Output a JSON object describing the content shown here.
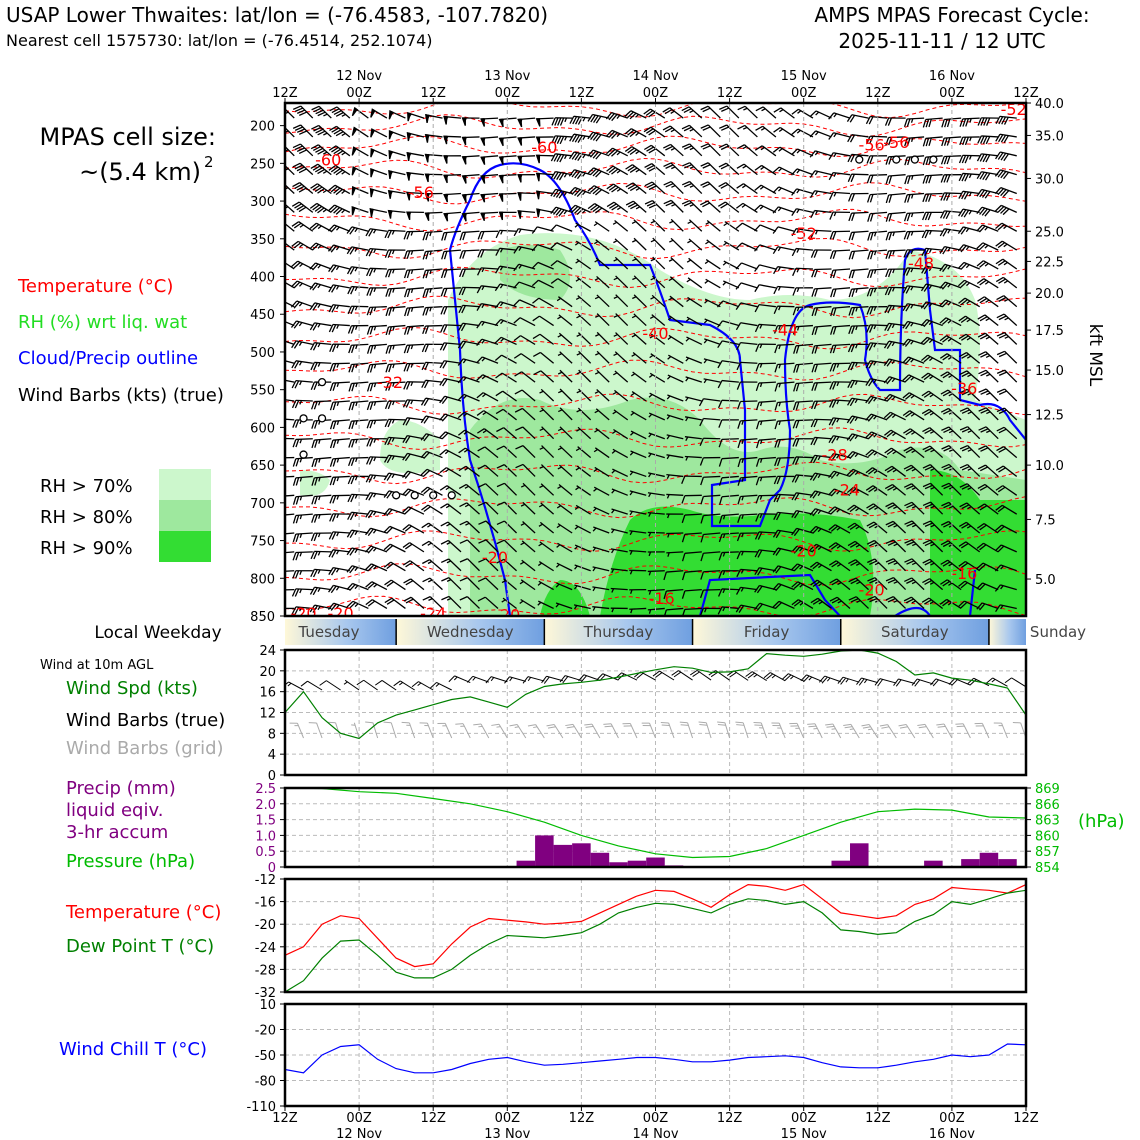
{
  "header": {
    "title_left": "USAP Lower Thwaites: lat/lon = (-76.4583, -107.7820)",
    "subtitle_left": "Nearest cell 1575730: lat/lon = (-76.4514, 252.1074)",
    "title_right_1": "AMPS MPAS Forecast Cycle:",
    "title_right_2": "2025-11-11 / 12 UTC"
  },
  "colors": {
    "rh70": "#ccf7cc",
    "rh80": "#9ee89e",
    "rh90": "#33dd33",
    "temp": "#ff0000",
    "rh_text": "#22dd22",
    "cloud": "#0000ff",
    "precip": "#800080",
    "pressure": "#00bb00",
    "dewpoint": "#008000",
    "windspd": "#008000",
    "windchill": "#0000ff",
    "grid_barb": "#aaaaaa"
  },
  "top_panel": {
    "cell_size_label": "MPAS cell size:",
    "cell_size_value": "~(5.4 km)",
    "cell_size_exp": "2",
    "legend": {
      "temperature": "Temperature (°C)",
      "rh": "RH (%) wrt liq. wat",
      "cloud": "Cloud/Precip outline",
      "wind": "Wind Barbs (kts) (true)",
      "rh70": "RH > 70%",
      "rh80": "RH > 80%",
      "rh90": "RH > 90%"
    },
    "right_axis_label": "kft MSL"
  },
  "weekday": {
    "label": "Local Weekday",
    "days": [
      "Tuesday",
      "Wednesday",
      "Thursday",
      "Friday",
      "Saturday",
      "Sunday"
    ]
  },
  "wind_panel": {
    "title": "Wind at 10m AGL",
    "label_speed": "Wind Spd (kts)",
    "label_true": "Wind Barbs (true)",
    "label_grid": "Wind Barbs (grid)"
  },
  "precip_panel": {
    "label_1": "Precip (mm)",
    "label_2": "liquid eqiv.",
    "label_3": "3-hr accum",
    "label_pressure": "Pressure (hPa)",
    "right_unit": "(hPa)"
  },
  "temp_panel": {
    "label_temp": "Temperature (°C)",
    "label_dew": "Dew Point T (°C)"
  },
  "chill_panel": {
    "label": "Wind Chill T (°C)"
  },
  "chart_data": [
    {
      "type": "heatmap",
      "name": "vertical cross-section",
      "x_ticks_top": [
        "12Z",
        "00Z",
        "12Z",
        "00Z",
        "12Z",
        "00Z",
        "12Z",
        "00Z",
        "12Z",
        "00Z",
        "12Z"
      ],
      "x_dates_top": [
        "12 Nov",
        "13 Nov",
        "14 Nov",
        "15 Nov",
        "16 Nov"
      ],
      "y_left_ticks": [
        200,
        250,
        300,
        350,
        400,
        450,
        500,
        550,
        600,
        650,
        700,
        750,
        800,
        850
      ],
      "y_left_range": [
        170,
        850
      ],
      "y_right_ticks": [
        "40.0",
        "35.0",
        "30.0",
        "25.0",
        "22.5",
        "20.0",
        "17.5",
        "15.0",
        "12.5",
        "10.0",
        "7.5",
        "5.0"
      ],
      "y_right_pressure": [
        170,
        213,
        270,
        340,
        380,
        422,
        471,
        524,
        583,
        650,
        722,
        801
      ],
      "temp_contour_labels": [
        {
          "text": "-52",
          "t": 118,
          "p": 178
        },
        {
          "text": "-56",
          "t": 95,
          "p": 225
        },
        {
          "text": "-56",
          "t": 99,
          "p": 222
        },
        {
          "text": "-60",
          "t": 7,
          "p": 245
        },
        {
          "text": "-60",
          "t": 42,
          "p": 228
        },
        {
          "text": "-56",
          "t": 22,
          "p": 288
        },
        {
          "text": "-52",
          "t": 84,
          "p": 342
        },
        {
          "text": "-48",
          "t": 103,
          "p": 382
        },
        {
          "text": "-44",
          "t": 81,
          "p": 470
        },
        {
          "text": "-40",
          "t": 60,
          "p": 475
        },
        {
          "text": "-36",
          "t": 110,
          "p": 548
        },
        {
          "text": "-32",
          "t": 17,
          "p": 540
        },
        {
          "text": "-28",
          "t": 89,
          "p": 636
        },
        {
          "text": "-24",
          "t": 91,
          "p": 682
        },
        {
          "text": "-20",
          "t": 84,
          "p": 763
        },
        {
          "text": "-20",
          "t": 34,
          "p": 772
        },
        {
          "text": "-16",
          "t": 110,
          "p": 793
        },
        {
          "text": "-16",
          "t": 61,
          "p": 826
        },
        {
          "text": "-20",
          "t": 95,
          "p": 815
        },
        {
          "text": "-24",
          "t": 24,
          "p": 846
        },
        {
          "text": "-20",
          "t": 3,
          "p": 846
        },
        {
          "text": "-20",
          "t": 9,
          "p": 846
        },
        {
          "text": "-20",
          "t": 36,
          "p": 848
        }
      ],
      "calm_markers": [
        {
          "t": 6,
          "p": 540
        },
        {
          "t": 3,
          "p": 588
        },
        {
          "t": 6,
          "p": 588
        },
        {
          "t": 3,
          "p": 636
        },
        {
          "t": 18,
          "p": 690
        },
        {
          "t": 21,
          "p": 690
        },
        {
          "t": 24,
          "p": 690
        },
        {
          "t": 27,
          "p": 690
        },
        {
          "t": 93,
          "p": 245
        },
        {
          "t": 99,
          "p": 245
        },
        {
          "t": 102,
          "p": 245
        },
        {
          "t": 105,
          "p": 245
        }
      ]
    },
    {
      "type": "line",
      "name": "10m wind",
      "x_hours": [
        0,
        3,
        6,
        9,
        12,
        15,
        18,
        21,
        24,
        27,
        30,
        33,
        36,
        39,
        42,
        45,
        48,
        51,
        54,
        57,
        60,
        63,
        66,
        69,
        72,
        75,
        78,
        81,
        84,
        87,
        90,
        93,
        96,
        99,
        102,
        105,
        108,
        111,
        114,
        117,
        120
      ],
      "ylim": [
        0,
        24
      ],
      "y_ticks": [
        0,
        4,
        8,
        12,
        16,
        20,
        24
      ],
      "series": [
        {
          "values": [
            12,
            16,
            11,
            8,
            7,
            10,
            11.5,
            12.5,
            13.5,
            14.5,
            15,
            14,
            13,
            15.5,
            17,
            17.5,
            17.8,
            18.2,
            18.8,
            19.5,
            20.2,
            20.8,
            20.5,
            19.7,
            19.8,
            20.4,
            23.3,
            23,
            22.8,
            23.2,
            23.8,
            24,
            23.4,
            21.8,
            19.2,
            19.6,
            18.6,
            18.2,
            17.5,
            16.7,
            11.5
          ]
        }
      ]
    },
    {
      "type": "bar",
      "name": "3-hr precip and pressure",
      "ylim_left": [
        0,
        2.5
      ],
      "y_ticks_left": [
        "0",
        "0.5",
        "1.0",
        "1.5",
        "2.0",
        "2.5"
      ],
      "y_ticks_right": [
        854,
        857,
        860,
        863,
        866,
        869
      ],
      "series": [
        {
          "x_hours": [
            39,
            42,
            45,
            48,
            51,
            54,
            57,
            60,
            63,
            66,
            69,
            72,
            75,
            78,
            81,
            84,
            87,
            90,
            93,
            96,
            99,
            102,
            105,
            108,
            111,
            114,
            117
          ],
          "values": [
            0.2,
            1.0,
            0.7,
            0.75,
            0.45,
            0.15,
            0.2,
            0.3,
            0.05,
            0,
            0,
            0,
            0,
            0,
            0,
            0,
            0,
            0.2,
            0.75,
            0,
            0,
            0,
            0.2,
            0,
            0.25,
            0.45,
            0.25
          ]
        },
        {
          "x_hours": [
            0,
            6,
            12,
            18,
            24,
            30,
            36,
            42,
            48,
            54,
            60,
            66,
            72,
            78,
            84,
            90,
            96,
            102,
            108,
            114,
            120
          ],
          "values": [
            869,
            868.9,
            868.3,
            868,
            867,
            866,
            864.5,
            862.5,
            860,
            858,
            856.5,
            855.8,
            856,
            857.5,
            860,
            862.5,
            864.5,
            865,
            864.8,
            863.5,
            863.3
          ]
        }
      ]
    },
    {
      "type": "line",
      "name": "temperature and dew point",
      "ylim": [
        -32,
        -12
      ],
      "y_ticks": [
        -32,
        -28,
        -24,
        -20,
        -16,
        -12
      ],
      "x_hours": [
        0,
        3,
        6,
        9,
        12,
        15,
        18,
        21,
        24,
        27,
        30,
        33,
        36,
        39,
        42,
        45,
        48,
        51,
        54,
        57,
        60,
        63,
        66,
        69,
        72,
        75,
        78,
        81,
        84,
        87,
        90,
        93,
        96,
        99,
        102,
        105,
        108,
        111,
        114,
        117,
        120
      ],
      "series": [
        {
          "values": [
            -25.5,
            -24,
            -20,
            -18.5,
            -19,
            -22.5,
            -26,
            -27.5,
            -27,
            -23.5,
            -20.5,
            -19,
            -19.3,
            -19.6,
            -20,
            -19.8,
            -19.5,
            -18,
            -16.5,
            -15,
            -14,
            -14.2,
            -15.5,
            -17,
            -14.8,
            -13,
            -13.3,
            -14,
            -13,
            -15.5,
            -18,
            -18.5,
            -19,
            -18.5,
            -16.5,
            -15.5,
            -13.5,
            -13.8,
            -14,
            -14.5,
            -13
          ]
        },
        {
          "values": [
            -32,
            -30,
            -26,
            -23,
            -22.8,
            -25.5,
            -28.5,
            -29.5,
            -29.5,
            -28,
            -25.5,
            -23.5,
            -22,
            -22.2,
            -22.4,
            -22,
            -21.5,
            -20,
            -18,
            -17,
            -16.3,
            -16.5,
            -17.2,
            -18,
            -16.5,
            -15.5,
            -15.8,
            -16.5,
            -16,
            -18,
            -21,
            -21.3,
            -21.8,
            -21.5,
            -19.5,
            -18.3,
            -16,
            -16.5,
            -15.5,
            -14.5,
            -14
          ]
        }
      ]
    },
    {
      "type": "line",
      "name": "wind chill",
      "ylim": [
        -110,
        10
      ],
      "y_ticks": [
        -110,
        -80,
        -50,
        -20,
        10
      ],
      "x_ticks": [
        "12Z",
        "00Z",
        "12Z",
        "00Z",
        "12Z",
        "00Z",
        "12Z",
        "00Z",
        "12Z",
        "00Z",
        "12Z"
      ],
      "x_dates": [
        "12 Nov",
        "13 Nov",
        "14 Nov",
        "15 Nov",
        "16 Nov"
      ],
      "x_hours": [
        0,
        3,
        6,
        9,
        12,
        15,
        18,
        21,
        24,
        27,
        30,
        33,
        36,
        39,
        42,
        45,
        48,
        51,
        54,
        57,
        60,
        63,
        66,
        69,
        72,
        75,
        78,
        81,
        84,
        87,
        90,
        93,
        96,
        99,
        102,
        105,
        108,
        111,
        114,
        117,
        120
      ],
      "series": [
        {
          "values": [
            -67,
            -71,
            -50,
            -40,
            -38,
            -55,
            -66,
            -71,
            -71,
            -67,
            -60,
            -55,
            -53,
            -58,
            -62,
            -61,
            -59,
            -57,
            -55,
            -53,
            -53,
            -55,
            -58,
            -58,
            -56,
            -53,
            -52,
            -51,
            -53,
            -59,
            -64,
            -65,
            -65,
            -62,
            -58,
            -55,
            -50,
            -52,
            -50,
            -37,
            -38
          ]
        }
      ]
    }
  ]
}
